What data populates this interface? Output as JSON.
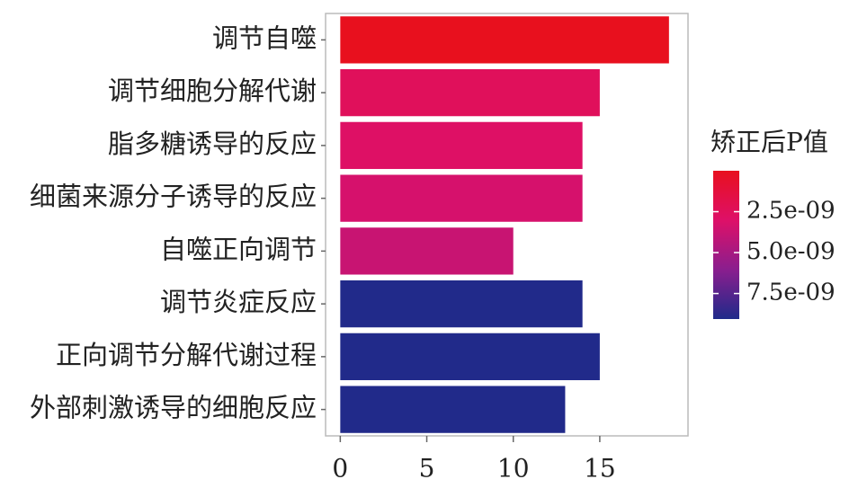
{
  "chart_data": {
    "type": "bar",
    "orientation": "horizontal",
    "categories": [
      "调节自噬",
      "调节细胞分解代谢",
      "脂多糖诱导的反应",
      "细菌来源分子诱导的反应",
      "自噬正向调节",
      "调节炎症反应",
      "正向调节分解代谢过程",
      "外部刺激诱导的细胞反应"
    ],
    "values": [
      19,
      15,
      14,
      14,
      10,
      14,
      15,
      13
    ],
    "p_values": [
      0.0,
      2.5e-09,
      2.9e-09,
      3.3e-09,
      3.8e-09,
      9e-09,
      9e-09,
      9e-09
    ],
    "xlim": [
      -0.85,
      20.1
    ],
    "xticks": [
      0,
      5,
      10,
      15
    ],
    "colorbar": {
      "title": "矫正后P值",
      "clim": [
        0,
        9.06e-09
      ],
      "colors": [
        "#e8101e",
        "#de1068",
        "#8a1e8e",
        "#1f2a8a"
      ],
      "ticks": [
        {
          "value": 2.5e-09,
          "label": "2.5e-09"
        },
        {
          "value": 5e-09,
          "label": "5.0e-09"
        },
        {
          "value": 7.5e-09,
          "label": "7.5e-09"
        }
      ]
    }
  }
}
